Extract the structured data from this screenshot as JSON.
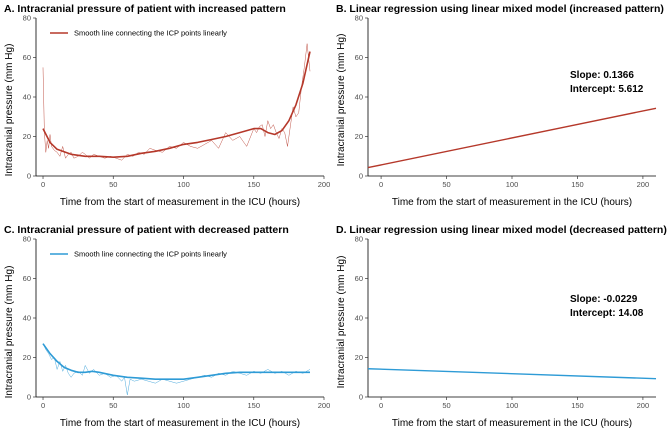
{
  "chart_data": [
    {
      "id": "A",
      "type": "line",
      "title": "A.  Intracranial pressure of patient with increased pattern",
      "xlabel": "Time from the start of measurement in the ICU (hours)",
      "ylabel": "Intracranial pressure (mm Hg)",
      "xlim": [
        -5,
        200
      ],
      "ylim": [
        0,
        80
      ],
      "xticks": [
        0,
        50,
        100,
        150,
        200
      ],
      "yticks": [
        0,
        20,
        40,
        60,
        80
      ],
      "color": "#b5382a",
      "legend": "Smooth line connecting the ICP points linearly",
      "legend_position": "top-left",
      "raw": {
        "x": [
          0,
          1,
          2,
          3,
          4,
          5,
          6,
          8,
          10,
          12,
          14,
          16,
          18,
          20,
          22,
          25,
          28,
          30,
          33,
          36,
          40,
          44,
          48,
          52,
          56,
          60,
          64,
          68,
          72,
          76,
          80,
          85,
          90,
          95,
          100,
          105,
          110,
          115,
          120,
          125,
          130,
          135,
          140,
          145,
          150,
          152,
          154,
          156,
          158,
          160,
          162,
          164,
          166,
          168,
          170,
          172,
          174,
          176,
          178,
          180,
          182,
          184,
          186,
          188,
          190
        ],
        "y": [
          55,
          22,
          12,
          18,
          14,
          21,
          15,
          13,
          12,
          10,
          15,
          9,
          11,
          12,
          9,
          10,
          12,
          11,
          9,
          11,
          10,
          9,
          10,
          9,
          8,
          11,
          10,
          12,
          11,
          14,
          13,
          12,
          15,
          14,
          17,
          15,
          14,
          16,
          18,
          14,
          22,
          18,
          20,
          15,
          24,
          22,
          25,
          26,
          20,
          28,
          24,
          26,
          22,
          19,
          24,
          22,
          15,
          25,
          35,
          30,
          32,
          45,
          55,
          67,
          53
        ]
      },
      "smooth": {
        "x": [
          0,
          5,
          10,
          20,
          30,
          40,
          50,
          60,
          70,
          80,
          90,
          100,
          110,
          120,
          130,
          140,
          150,
          155,
          160,
          165,
          170,
          175,
          180,
          185,
          190
        ],
        "y": [
          24,
          17,
          13.5,
          11,
          10,
          10,
          9.5,
          10,
          11.5,
          12.5,
          14,
          16,
          17,
          18.5,
          20,
          22,
          24,
          24,
          22,
          21,
          23,
          28,
          36,
          47,
          63
        ]
      }
    },
    {
      "id": "B",
      "type": "line",
      "title": "B.  Linear regression using linear mixed model (increased pattern)",
      "xlabel": "Time from the start of measurement in the ICU (hours)",
      "ylabel": "Intracranial pressure (mm Hg)",
      "xlim": [
        -10,
        210
      ],
      "ylim": [
        0,
        80
      ],
      "xticks": [
        0,
        50,
        100,
        150,
        200
      ],
      "yticks": [
        0,
        20,
        40,
        60,
        80
      ],
      "color": "#b5382a",
      "slope": 0.1366,
      "intercept": 5.612,
      "slope_label": "Slope: 0.1366",
      "intercept_label": "Intercept: 5.612"
    },
    {
      "id": "C",
      "type": "line",
      "title": "C.  Intracranial pressure of patient with decreased pattern",
      "xlabel": "Time from the start of measurement in the ICU (hours)",
      "ylabel": "Intracranial pressure (mm Hg)",
      "xlim": [
        -5,
        200
      ],
      "ylim": [
        0,
        80
      ],
      "xticks": [
        0,
        50,
        100,
        150,
        200
      ],
      "yticks": [
        0,
        20,
        40,
        60,
        80
      ],
      "color": "#2e9bd6",
      "legend": "Smooth line connecting the ICP points linearly",
      "legend_position": "top-left",
      "raw": {
        "x": [
          0,
          2,
          4,
          6,
          8,
          10,
          12,
          14,
          16,
          18,
          20,
          22,
          25,
          28,
          30,
          33,
          36,
          40,
          44,
          48,
          52,
          56,
          58,
          60,
          62,
          65,
          70,
          75,
          80,
          85,
          90,
          95,
          100,
          105,
          110,
          115,
          120,
          125,
          130,
          135,
          140,
          145,
          150,
          155,
          160,
          165,
          170,
          175,
          180,
          185,
          190
        ],
        "y": [
          27,
          24,
          22,
          19,
          20,
          14,
          18,
          13,
          16,
          12,
          10,
          12,
          13,
          11,
          16,
          12,
          14,
          11,
          12,
          10,
          11,
          8,
          10,
          1,
          9,
          8,
          9,
          8,
          7,
          9,
          8,
          7,
          8,
          9,
          10,
          11,
          10,
          12,
          11,
          13,
          12,
          11,
          13,
          12,
          14,
          12,
          13,
          11,
          13,
          12,
          14
        ]
      },
      "smooth": {
        "x": [
          0,
          5,
          10,
          15,
          20,
          25,
          30,
          35,
          40,
          50,
          60,
          70,
          80,
          90,
          100,
          110,
          120,
          130,
          140,
          150,
          160,
          170,
          180,
          190
        ],
        "y": [
          27,
          22,
          18,
          15,
          13.5,
          12.5,
          12.5,
          13,
          12.5,
          11,
          10,
          9.5,
          9,
          9,
          9,
          10,
          11,
          12,
          12.5,
          12.5,
          12.5,
          12.5,
          12.5,
          12.5
        ]
      }
    },
    {
      "id": "D",
      "type": "line",
      "title": "D.  Linear regression using linear mixed model (decreased pattern)",
      "xlabel": "Time from the start of measurement in the ICU (hours)",
      "ylabel": "Intracranial pressure (mm Hg)",
      "xlim": [
        -10,
        210
      ],
      "ylim": [
        0,
        80
      ],
      "xticks": [
        0,
        50,
        100,
        150,
        200
      ],
      "yticks": [
        0,
        20,
        40,
        60,
        80
      ],
      "color": "#2e9bd6",
      "slope": -0.0229,
      "intercept": 14.08,
      "slope_label": "Slope: -0.0229",
      "intercept_label": "Intercept: 14.08"
    }
  ]
}
